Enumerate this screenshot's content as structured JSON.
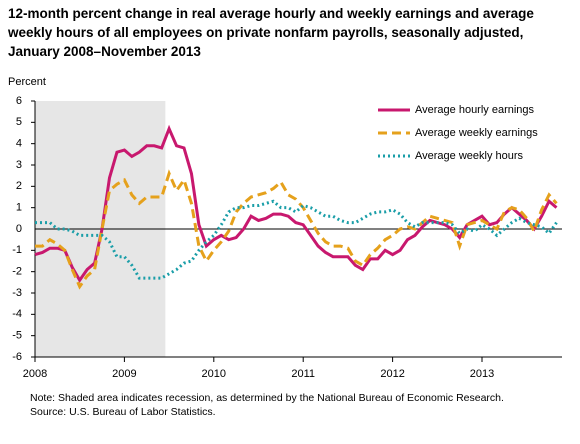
{
  "chart_data": {
    "type": "line",
    "title": "12-month percent change in real average hourly and weekly earnings and average weekly hours of all employees on private nonfarm payrolls, seasonally adjusted, January 2008–November 2013",
    "y_label": "Percent",
    "categories": [
      "2008",
      null,
      null,
      null,
      null,
      null,
      null,
      null,
      null,
      null,
      null,
      null,
      "2009",
      null,
      null,
      null,
      null,
      null,
      null,
      null,
      null,
      null,
      null,
      null,
      "2010",
      null,
      null,
      null,
      null,
      null,
      null,
      null,
      null,
      null,
      null,
      null,
      "2011",
      null,
      null,
      null,
      null,
      null,
      null,
      null,
      null,
      null,
      null,
      null,
      "2012",
      null,
      null,
      null,
      null,
      null,
      null,
      null,
      null,
      null,
      null,
      null,
      "2013",
      null,
      null,
      null,
      null,
      null,
      null,
      null,
      null,
      null,
      null
    ],
    "shaded_range": [
      0,
      17
    ],
    "series": [
      {
        "name": "Average hourly earnings",
        "color": "#c8186e",
        "style": "solid",
        "values": [
          -1.2,
          -1.1,
          -0.9,
          -0.9,
          -1.0,
          -1.8,
          -2.4,
          -1.9,
          -1.6,
          0.0,
          2.4,
          3.6,
          3.7,
          3.4,
          3.6,
          3.9,
          3.9,
          3.8,
          4.7,
          3.9,
          3.8,
          2.6,
          0.2,
          -0.8,
          -0.5,
          -0.3,
          -0.5,
          -0.4,
          0.0,
          0.6,
          0.4,
          0.5,
          0.7,
          0.7,
          0.6,
          0.3,
          0.2,
          -0.3,
          -0.8,
          -1.1,
          -1.3,
          -1.3,
          -1.3,
          -1.7,
          -1.9,
          -1.4,
          -1.4,
          -1.0,
          -1.2,
          -1.0,
          -0.5,
          -0.3,
          0.1,
          0.4,
          0.3,
          0.2,
          0.0,
          -0.4,
          0.2,
          0.4,
          0.6,
          0.2,
          0.3,
          0.7,
          1.0,
          0.7,
          0.4,
          0.0,
          0.6,
          1.3,
          1.0
        ]
      },
      {
        "name": "Average weekly earnings",
        "color": "#e5a11c",
        "style": "dashed",
        "values": [
          -0.8,
          -0.8,
          -0.5,
          -0.7,
          -1.0,
          -1.9,
          -2.7,
          -2.2,
          -1.9,
          0.0,
          1.8,
          2.1,
          2.3,
          1.6,
          1.2,
          1.5,
          1.5,
          1.5,
          2.6,
          1.8,
          2.3,
          1.2,
          -0.8,
          -1.5,
          -1.0,
          -0.6,
          -0.1,
          0.8,
          1.2,
          1.5,
          1.6,
          1.7,
          1.9,
          2.2,
          1.6,
          1.4,
          1.0,
          0.4,
          -0.2,
          -0.6,
          -0.8,
          -0.8,
          -0.9,
          -1.5,
          -1.7,
          -1.2,
          -0.9,
          -0.5,
          -0.3,
          0.0,
          0.1,
          0.0,
          0.3,
          0.6,
          0.5,
          0.4,
          0.3,
          -0.8,
          0.2,
          0.3,
          0.4,
          0.2,
          0.0,
          0.8,
          1.0,
          0.9,
          0.5,
          -0.1,
          0.9,
          1.6,
          1.2
        ]
      },
      {
        "name": "Average weekly hours",
        "color": "#1a9ea8",
        "style": "dotted",
        "values": [
          0.3,
          0.3,
          0.3,
          0.0,
          0.0,
          -0.1,
          -0.3,
          -0.3,
          -0.3,
          -0.3,
          -0.6,
          -1.3,
          -1.3,
          -1.7,
          -2.3,
          -2.3,
          -2.3,
          -2.3,
          -2.1,
          -1.9,
          -1.6,
          -1.5,
          -1.0,
          -0.6,
          -0.3,
          0.2,
          0.8,
          1.0,
          1.0,
          1.1,
          1.1,
          1.2,
          1.3,
          1.0,
          1.0,
          0.8,
          1.1,
          1.0,
          0.8,
          0.6,
          0.6,
          0.4,
          0.3,
          0.3,
          0.5,
          0.7,
          0.8,
          0.8,
          0.9,
          0.7,
          0.3,
          0.1,
          0.3,
          0.3,
          0.3,
          0.3,
          0.2,
          -0.2,
          0.0,
          -0.1,
          0.2,
          0.0,
          -0.3,
          0.0,
          0.3,
          0.5,
          0.3,
          0.2,
          0.1,
          -0.2,
          0.3
        ]
      }
    ],
    "ylim": [
      -6,
      6
    ],
    "yticks": [
      -6,
      -5,
      -4,
      -3,
      -2,
      -1,
      0,
      1,
      2,
      3,
      4,
      5,
      6
    ],
    "legend": "top-right",
    "notes": [
      "Note: Shaded area indicates recession, as determined by the National Bureau of Economic Research.",
      "Source: U.S. Bureau of Labor Statistics."
    ]
  }
}
